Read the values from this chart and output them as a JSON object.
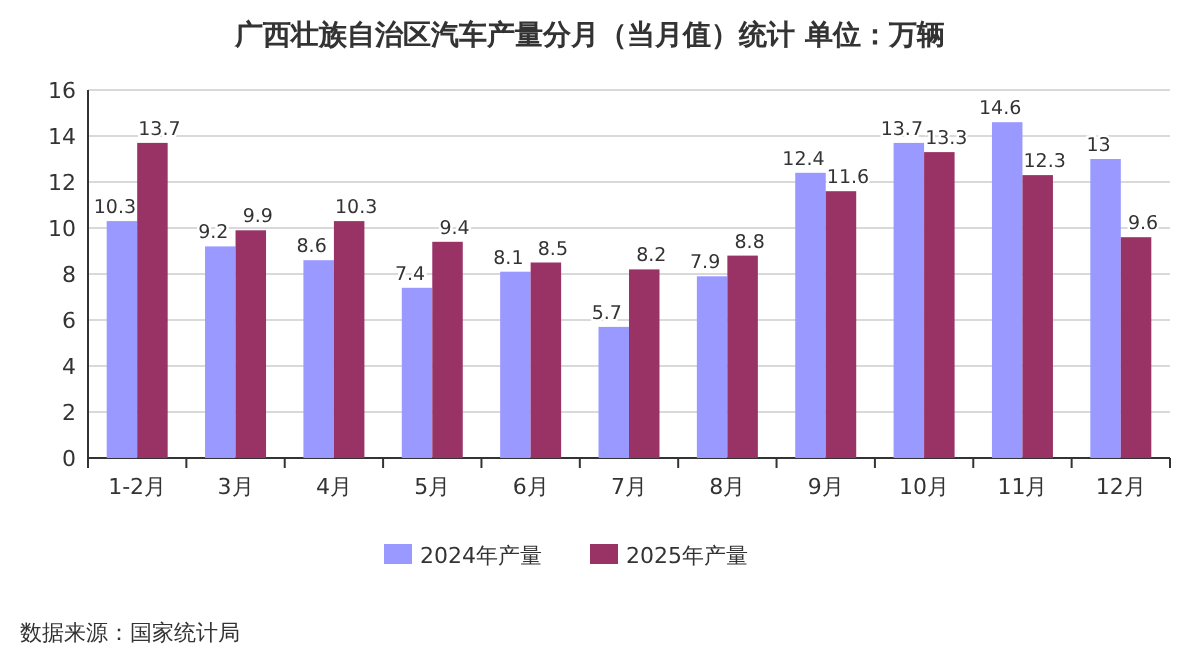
{
  "chart_data": {
    "type": "bar",
    "title": "广西壮族自治区汽车产量分月（当月值）统计 单位：万辆",
    "categories": [
      "1-2月",
      "3月",
      "4月",
      "5月",
      "6月",
      "7月",
      "8月",
      "9月",
      "10月",
      "11月",
      "12月"
    ],
    "series": [
      {
        "name": "2024年产量",
        "color": "#9999ff",
        "values": [
          10.3,
          9.2,
          8.6,
          7.4,
          8.1,
          5.7,
          7.9,
          12.4,
          13.7,
          14.6,
          13
        ]
      },
      {
        "name": "2025年产量",
        "color": "#993366",
        "values": [
          13.7,
          9.9,
          10.3,
          9.4,
          8.5,
          8.2,
          8.8,
          11.6,
          13.3,
          12.3,
          9.6
        ]
      }
    ],
    "ylim": [
      0,
      16
    ],
    "yticks": [
      0,
      2,
      4,
      6,
      8,
      10,
      12,
      14,
      16
    ],
    "grid": "y",
    "legend": "bottom",
    "data_labels": true,
    "annotations": [
      "数据来源：国家统计局"
    ]
  }
}
